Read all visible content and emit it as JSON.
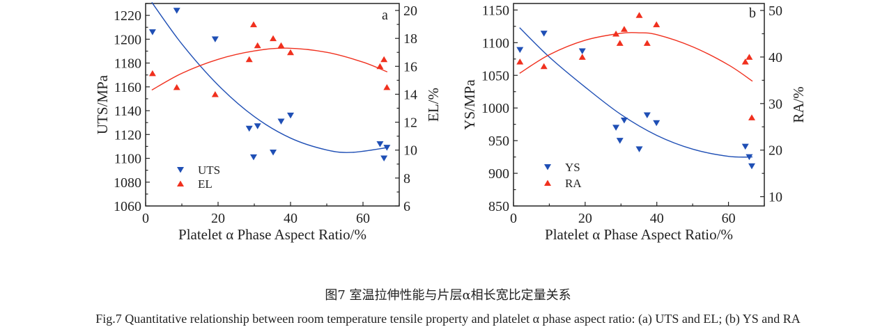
{
  "chart_data": [
    {
      "type": "scatter",
      "panel_label": "a",
      "xlabel": "Platelet α Phase Aspect Ratio/%",
      "ylabel_left": "UTS/MPa",
      "ylabel_right": "EL/%",
      "xlim": [
        0,
        70
      ],
      "ylim_left": [
        1060,
        1230
      ],
      "ylim_right": [
        6,
        20.5
      ],
      "xticks": [
        0,
        20,
        40,
        60
      ],
      "yticks_left": [
        1060,
        1080,
        1100,
        1120,
        1140,
        1160,
        1180,
        1200,
        1220
      ],
      "yticks_right": [
        6,
        8,
        10,
        12,
        14,
        16,
        18,
        20
      ],
      "grid": false,
      "legend_position": "bottom-left",
      "series": [
        {
          "name": "UTS",
          "axis": "left",
          "marker": "triangle-down",
          "color": "#1f4fb5",
          "x": [
            1.9,
            8.6,
            19.2,
            28.6,
            29.8,
            30.9,
            35.2,
            37.4,
            40.0,
            64.7,
            65.8,
            66.6
          ],
          "y": [
            1206,
            1224,
            1200,
            1125,
            1101,
            1127,
            1105,
            1131,
            1136,
            1112,
            1100,
            1109
          ],
          "fit": {
            "x": [
              1.7,
              10,
              20,
              30,
              40,
              50,
              57,
              66.7
            ],
            "y": [
              1231,
              1196,
              1161.5,
              1135,
              1117,
              1107,
              1105,
              1109
            ]
          }
        },
        {
          "name": "EL",
          "axis": "right",
          "marker": "triangle-up",
          "color": "#f0301e",
          "x": [
            1.9,
            8.6,
            19.2,
            28.6,
            29.8,
            30.9,
            35.2,
            37.4,
            40.0,
            64.7,
            65.8,
            66.6
          ],
          "y": [
            15.5,
            14.5,
            14.0,
            16.5,
            19.0,
            17.5,
            18.0,
            17.5,
            17.0,
            16.0,
            16.5,
            14.5
          ],
          "fit": {
            "x": [
              1.7,
              10,
              20,
              30,
              39,
              50,
              60,
              66.7
            ],
            "y": [
              14.3,
              15.5,
              16.5,
              17.1,
              17.3,
              17.0,
              16.3,
              15.6
            ]
          }
        }
      ]
    },
    {
      "type": "scatter",
      "panel_label": "b",
      "xlabel": "Platelet α Phase Aspect Ratio/%",
      "ylabel_left": "YS/MPa",
      "ylabel_right": "RA/%",
      "xlim": [
        0,
        70
      ],
      "ylim_left": [
        850,
        1160
      ],
      "ylim_right": [
        8,
        51.5
      ],
      "xticks": [
        0,
        20,
        40,
        60
      ],
      "yticks_left": [
        850,
        900,
        950,
        1000,
        1050,
        1100,
        1150
      ],
      "yticks_right": [
        10,
        20,
        30,
        40,
        50
      ],
      "grid": false,
      "legend_position": "bottom-left",
      "series": [
        {
          "name": "YS",
          "axis": "left",
          "marker": "triangle-down",
          "color": "#1f4fb5",
          "x": [
            1.8,
            8.5,
            19.2,
            28.6,
            29.7,
            30.9,
            35.1,
            37.3,
            39.9,
            64.7,
            65.8,
            66.5
          ],
          "y": [
            1089,
            1114,
            1087,
            970,
            950,
            981,
            937,
            989,
            977,
            941,
            925,
            911
          ],
          "fit": {
            "x": [
              1.7,
              10,
              20,
              30,
              40,
              50,
              60,
              66.7
            ],
            "y": [
              1123,
              1078,
              1032,
              990,
              958,
              937,
              926,
              925
            ]
          }
        },
        {
          "name": "RA",
          "axis": "right",
          "marker": "triangle-up",
          "color": "#f0301e",
          "x": [
            1.8,
            8.5,
            19.2,
            28.6,
            29.7,
            30.9,
            35.1,
            37.3,
            39.9,
            64.7,
            65.8,
            66.5
          ],
          "y": [
            39,
            38,
            40,
            45,
            43,
            46,
            49,
            43,
            47,
            39,
            40,
            27
          ],
          "fit": {
            "x": [
              1.7,
              10,
              20,
              30,
              35,
              40,
              50,
              60,
              66.7
            ],
            "y": [
              36.5,
              40.5,
              43.6,
              45.1,
              45.2,
              44.8,
              42.2,
              38.3,
              34.8
            ]
          }
        }
      ]
    }
  ],
  "caption": {
    "cn": "图7  室温拉伸性能与片层α相长宽比定量关系",
    "en": "Fig.7  Quantitative relationship between room temperature tensile property and platelet α phase aspect ratio: (a) UTS and EL; (b) YS and RA"
  }
}
